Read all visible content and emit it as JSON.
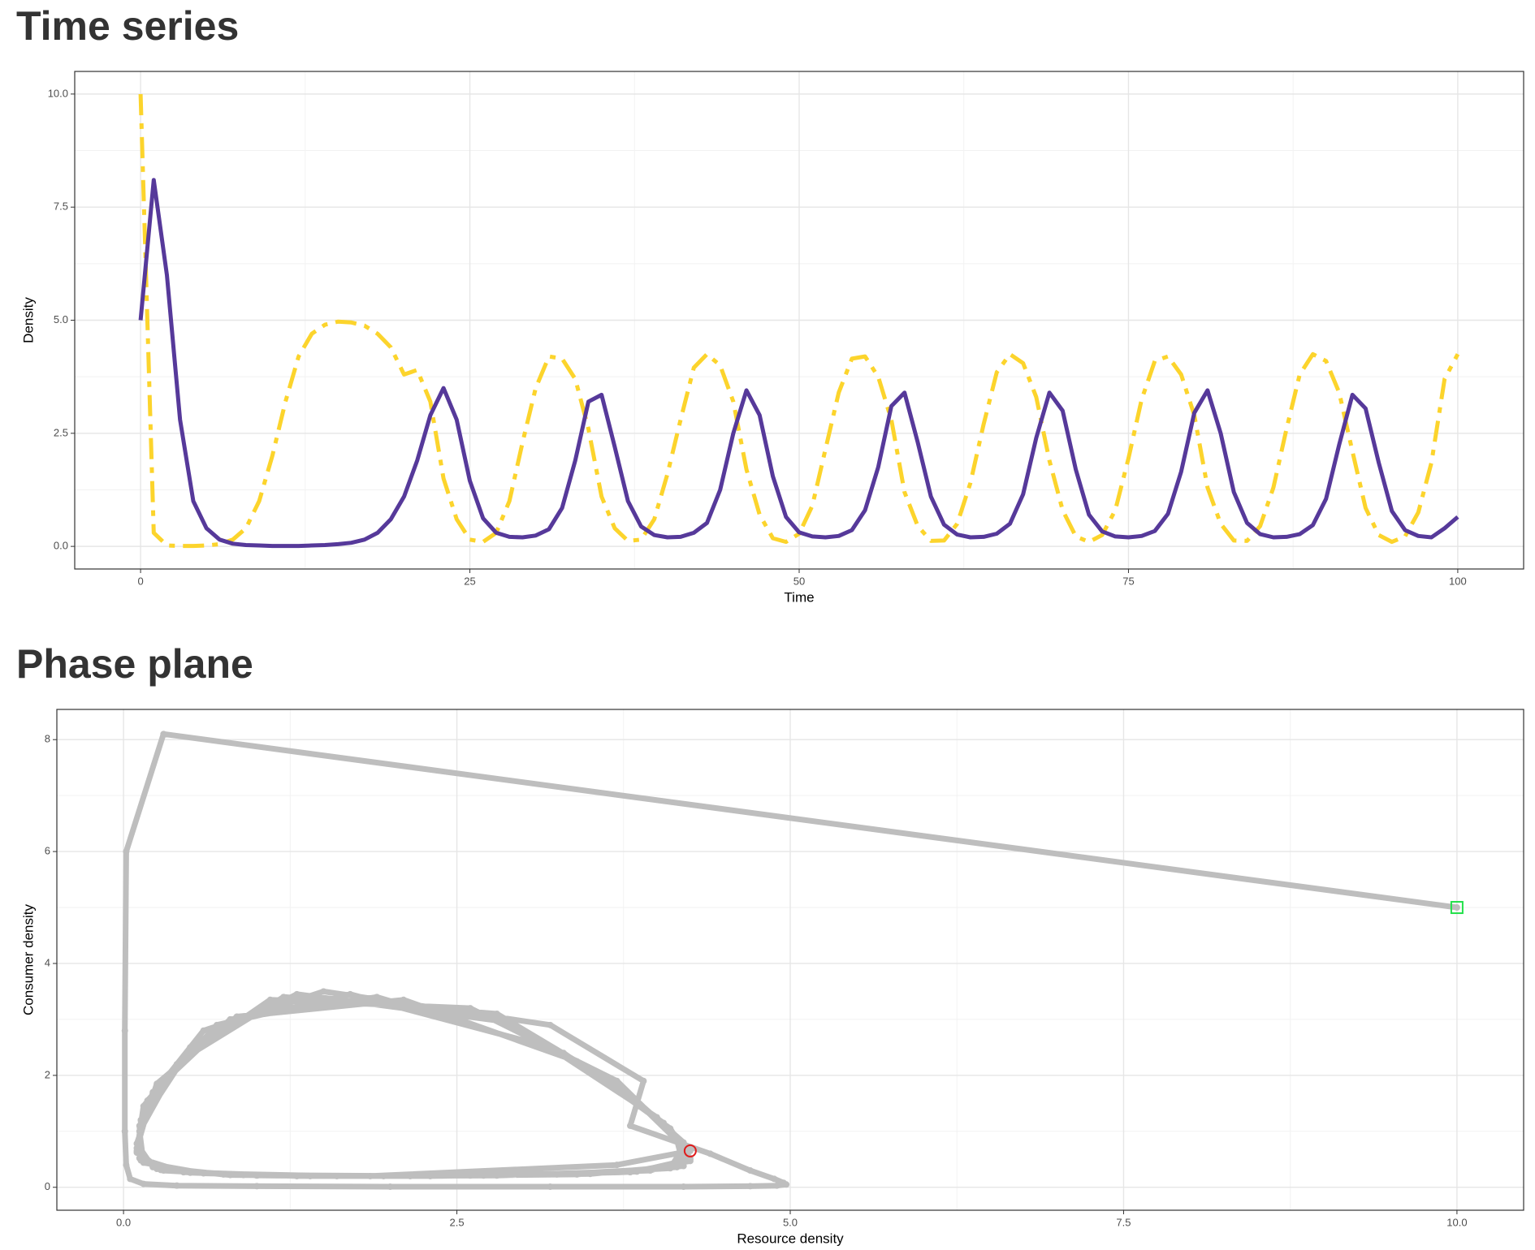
{
  "chart_data": [
    {
      "type": "line",
      "title": "Time series",
      "xlabel": "Time",
      "ylabel": "Density",
      "x": [
        0,
        1,
        2,
        3,
        4,
        5,
        6,
        7,
        8,
        9,
        10,
        11,
        12,
        13,
        14,
        15,
        16,
        17,
        18,
        19,
        20,
        21,
        22,
        23,
        24,
        25,
        26,
        27,
        28,
        29,
        30,
        31,
        32,
        33,
        34,
        35,
        36,
        37,
        38,
        39,
        40,
        41,
        42,
        43,
        44,
        45,
        46,
        47,
        48,
        49,
        50,
        51,
        52,
        53,
        54,
        55,
        56,
        57,
        58,
        59,
        60,
        61,
        62,
        63,
        64,
        65,
        66,
        67,
        68,
        69,
        70,
        71,
        72,
        73,
        74,
        75,
        76,
        77,
        78,
        79,
        80,
        81,
        82,
        83,
        84,
        85,
        86,
        87,
        88,
        89,
        90,
        91,
        92,
        93,
        94,
        95,
        96,
        97,
        98,
        99,
        100
      ],
      "series": [
        {
          "color": "#fcd42c",
          "dash": "dotdash",
          "values": [
            10,
            0.3,
            0.02,
            0.01,
            0.01,
            0.02,
            0.05,
            0.15,
            0.4,
            1.0,
            2.0,
            3.2,
            4.2,
            4.7,
            4.9,
            4.97,
            4.95,
            4.88,
            4.7,
            4.4,
            3.8,
            3.9,
            3.2,
            1.5,
            0.6,
            0.15,
            0.1,
            0.3,
            1.0,
            2.3,
            3.5,
            4.2,
            4.15,
            3.7,
            2.6,
            1.1,
            0.4,
            0.12,
            0.15,
            0.6,
            1.6,
            2.8,
            3.95,
            4.25,
            4.0,
            3.2,
            1.7,
            0.7,
            0.18,
            0.1,
            0.28,
            0.9,
            2.15,
            3.4,
            4.15,
            4.2,
            3.75,
            2.8,
            1.2,
            0.45,
            0.12,
            0.13,
            0.5,
            1.4,
            2.7,
            3.85,
            4.25,
            4.05,
            3.3,
            1.9,
            0.8,
            0.22,
            0.1,
            0.25,
            0.8,
            1.95,
            3.25,
            4.1,
            4.2,
            3.8,
            2.9,
            1.3,
            0.5,
            0.13,
            0.12,
            0.45,
            1.3,
            2.6,
            3.8,
            4.25,
            4.1,
            3.4,
            2.1,
            0.85,
            0.25,
            0.1,
            0.22,
            0.75,
            1.85,
            3.7,
            4.25
          ]
        },
        {
          "color": "#56399a",
          "dash": "solid",
          "values": [
            5,
            8.1,
            6.0,
            2.8,
            1.0,
            0.4,
            0.15,
            0.06,
            0.03,
            0.02,
            0.01,
            0.01,
            0.01,
            0.02,
            0.03,
            0.05,
            0.08,
            0.15,
            0.3,
            0.6,
            1.1,
            1.9,
            2.9,
            3.5,
            2.8,
            1.45,
            0.62,
            0.3,
            0.21,
            0.2,
            0.24,
            0.38,
            0.85,
            1.9,
            3.2,
            3.35,
            2.2,
            1.0,
            0.44,
            0.25,
            0.2,
            0.21,
            0.3,
            0.52,
            1.25,
            2.5,
            3.45,
            2.9,
            1.55,
            0.65,
            0.31,
            0.22,
            0.2,
            0.23,
            0.36,
            0.8,
            1.75,
            3.1,
            3.4,
            2.3,
            1.1,
            0.48,
            0.26,
            0.2,
            0.21,
            0.28,
            0.5,
            1.15,
            2.4,
            3.4,
            3.0,
            1.7,
            0.7,
            0.33,
            0.22,
            0.2,
            0.23,
            0.34,
            0.72,
            1.65,
            2.95,
            3.45,
            2.5,
            1.2,
            0.52,
            0.27,
            0.2,
            0.21,
            0.27,
            0.47,
            1.05,
            2.25,
            3.35,
            3.05,
            1.85,
            0.78,
            0.36,
            0.23,
            0.2,
            0.4,
            0.65
          ]
        }
      ],
      "xlim": [
        -5,
        105
      ],
      "xticks": [
        0,
        25,
        50,
        75,
        100
      ],
      "xminor": [
        12.5,
        37.5,
        62.5,
        87.5
      ],
      "ylim": [
        -0.5,
        10.5
      ],
      "yticks": [
        {
          "value": 0,
          "label": "0.0"
        },
        {
          "value": 2.5,
          "label": "2.5"
        },
        {
          "value": 5,
          "label": "5.0"
        },
        {
          "value": 7.5,
          "label": "7.5"
        },
        {
          "value": 10,
          "label": "10.0"
        }
      ],
      "yminor": [
        1.25,
        3.75,
        6.25,
        8.75
      ],
      "grid": true
    },
    {
      "type": "scatter",
      "title": "Phase plane",
      "xlabel": "Resource density",
      "ylabel": "Consumer density",
      "color": "#bebebe",
      "x": [
        10,
        0.3,
        0.02,
        0.01,
        0.01,
        0.02,
        0.05,
        0.15,
        0.4,
        1.0,
        2.0,
        3.2,
        4.2,
        4.7,
        4.9,
        4.97,
        4.95,
        4.88,
        4.7,
        4.4,
        3.8,
        3.9,
        3.2,
        1.5,
        0.6,
        0.15,
        0.1,
        0.3,
        1.0,
        2.3,
        3.5,
        4.2,
        4.15,
        3.7,
        2.6,
        1.1,
        0.4,
        0.12,
        0.15,
        0.6,
        1.6,
        2.8,
        3.95,
        4.25,
        4.0,
        3.2,
        1.7,
        0.7,
        0.18,
        0.1,
        0.28,
        0.9,
        2.15,
        3.4,
        4.15,
        4.2,
        3.75,
        2.8,
        1.2,
        0.45,
        0.12,
        0.13,
        0.5,
        1.4,
        2.7,
        3.85,
        4.25,
        4.05,
        3.3,
        1.9,
        0.8,
        0.22,
        0.1,
        0.25,
        0.8,
        1.95,
        3.25,
        4.1,
        4.2,
        3.8,
        2.9,
        1.3,
        0.5,
        0.13,
        0.12,
        0.45,
        1.3,
        2.6,
        3.8,
        4.25,
        4.1,
        3.4,
        2.1,
        0.85,
        0.25,
        0.1,
        0.22,
        0.75,
        1.85,
        3.7,
        4.25
      ],
      "y": [
        5,
        8.1,
        6.0,
        2.8,
        1.0,
        0.4,
        0.15,
        0.06,
        0.03,
        0.02,
        0.01,
        0.01,
        0.01,
        0.02,
        0.03,
        0.05,
        0.08,
        0.15,
        0.3,
        0.6,
        1.1,
        1.9,
        2.9,
        3.5,
        2.8,
        1.45,
        0.62,
        0.3,
        0.21,
        0.2,
        0.24,
        0.38,
        0.85,
        1.9,
        3.2,
        3.35,
        2.2,
        1.0,
        0.44,
        0.25,
        0.2,
        0.21,
        0.3,
        0.52,
        1.25,
        2.5,
        3.45,
        2.9,
        1.55,
        0.65,
        0.31,
        0.22,
        0.2,
        0.23,
        0.36,
        0.8,
        1.75,
        3.1,
        3.4,
        2.3,
        1.1,
        0.48,
        0.26,
        0.2,
        0.21,
        0.28,
        0.5,
        1.15,
        2.4,
        3.4,
        3.0,
        1.7,
        0.7,
        0.33,
        0.22,
        0.2,
        0.23,
        0.34,
        0.72,
        1.65,
        2.95,
        3.45,
        2.5,
        1.2,
        0.52,
        0.27,
        0.2,
        0.21,
        0.27,
        0.47,
        1.05,
        2.25,
        3.35,
        3.05,
        1.85,
        0.78,
        0.36,
        0.23,
        0.2,
        0.4,
        0.65
      ],
      "start": {
        "x": 10,
        "y": 5,
        "color": "#22e04a"
      },
      "end": {
        "x": 4.25,
        "y": 0.65,
        "color": "#e01b1b"
      },
      "xlim": [
        -0.5,
        10.5
      ],
      "xticks": [
        {
          "value": 0,
          "label": "0.0"
        },
        {
          "value": 2.5,
          "label": "2.5"
        },
        {
          "value": 5,
          "label": "5.0"
        },
        {
          "value": 7.5,
          "label": "7.5"
        },
        {
          "value": 10,
          "label": "10.0"
        }
      ],
      "xminor": [
        1.25,
        3.75,
        6.25,
        8.75
      ],
      "ylim": [
        -0.41,
        8.54
      ],
      "yticks": [
        0,
        2,
        4,
        6,
        8
      ],
      "yminor": [
        1,
        3,
        5,
        7
      ],
      "grid": true
    }
  ]
}
